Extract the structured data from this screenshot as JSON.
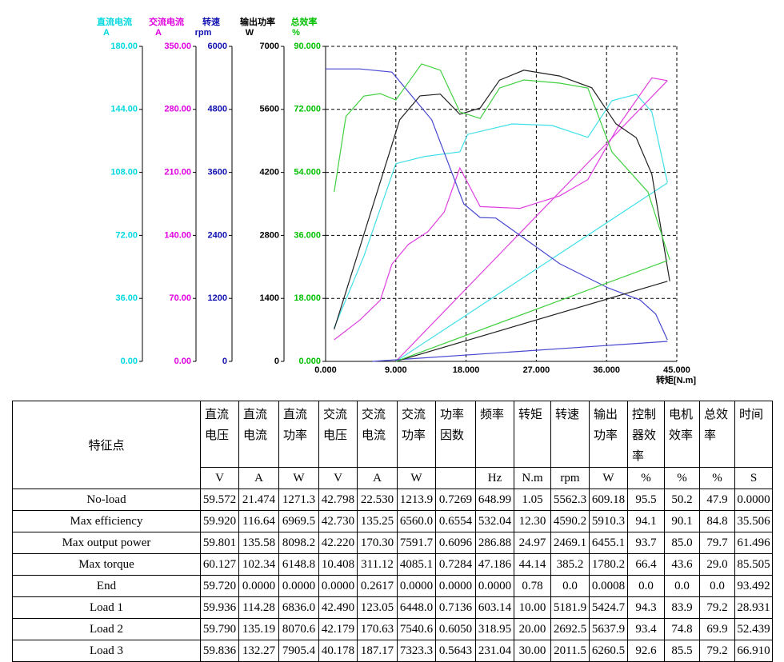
{
  "chart_data": {
    "type": "line",
    "grid": true,
    "axes": [
      {
        "title": "直流电流",
        "unit": "A",
        "color": "#00d8e0",
        "ylim": [
          0,
          180
        ],
        "yticks": [
          {
            "value": 0,
            "label": "0.00"
          },
          {
            "value": 36,
            "label": "36.00"
          },
          {
            "value": 72,
            "label": "72.00"
          },
          {
            "value": 108,
            "label": "108.00"
          },
          {
            "value": 144,
            "label": "144.00"
          },
          {
            "value": 180,
            "label": "180.00"
          }
        ]
      },
      {
        "title": "交流电流",
        "unit": "A",
        "color": "#e000e0",
        "ylim": [
          0,
          350
        ],
        "yticks": [
          {
            "value": 0,
            "label": "0.00"
          },
          {
            "value": 70,
            "label": "70.00"
          },
          {
            "value": 140,
            "label": "140.00"
          },
          {
            "value": 210,
            "label": "210.00"
          },
          {
            "value": 280,
            "label": "280.00"
          },
          {
            "value": 350,
            "label": "350.00"
          }
        ]
      },
      {
        "title": "转速",
        "unit": "rpm",
        "color": "#1010b0",
        "ylim": [
          0,
          6000
        ],
        "yticks": [
          0,
          1200,
          2400,
          3600,
          4800,
          6000
        ]
      },
      {
        "title": "输出功率",
        "unit": "W",
        "color": "#000000",
        "ylim": [
          0,
          7000
        ],
        "yticks": [
          0,
          1400,
          2800,
          4200,
          5600,
          7000
        ]
      },
      {
        "title": "总效率",
        "unit": "%",
        "color": "#00c000",
        "ylim": [
          0,
          90
        ],
        "yticks": [
          {
            "value": 0,
            "label": "0.000"
          },
          {
            "value": 18,
            "label": "18.000"
          },
          {
            "value": 36,
            "label": "36.000"
          },
          {
            "value": 54,
            "label": "54.000"
          },
          {
            "value": 72,
            "label": "72.000"
          },
          {
            "value": 90,
            "label": "90.000"
          }
        ]
      }
    ],
    "xlabel": "转矩[N.m]",
    "xlim": [
      0,
      45
    ],
    "xticks": [
      {
        "value": 0,
        "label": "0.000"
      },
      {
        "value": 9,
        "label": "9.000"
      },
      {
        "value": 18,
        "label": "18.000"
      },
      {
        "value": 27,
        "label": "27.000"
      },
      {
        "value": 36,
        "label": "36.000"
      },
      {
        "value": 45,
        "label": "45.000"
      }
    ],
    "series": [
      {
        "axis": 0,
        "color": "#40e0e8",
        "x": [
          1.1,
          4.9,
          9.0,
          12.6,
          17.2,
          18.2,
          23.9,
          29.0,
          33.6,
          36.7,
          39.8,
          41.8,
          43.8
        ],
        "values": [
          19.2,
          60,
          113,
          117,
          119.7,
          129.7,
          135.7,
          134.8,
          128,
          149,
          152.6,
          142.6,
          102.3
        ]
      },
      {
        "axis": 0,
        "color": "#40e0e8",
        "x": [
          9.0,
          43.8
        ],
        "values": [
          0,
          102
        ]
      },
      {
        "axis": 1,
        "color": "#e040e0",
        "x": [
          1.1,
          4.4,
          7.0,
          8.5,
          10.6,
          13.1,
          15.2,
          17.2,
          19.8,
          24.9,
          30.0,
          33.6,
          37.7,
          41.8,
          43.8
        ],
        "values": [
          24,
          46,
          68,
          108,
          130,
          144,
          166,
          215,
          172,
          170,
          184,
          202,
          264,
          315,
          312
        ]
      },
      {
        "axis": 1,
        "color": "#e040e0",
        "x": [
          9.0,
          43.8
        ],
        "values": [
          0,
          312
        ]
      },
      {
        "axis": 2,
        "color": "#4848d0",
        "x": [
          0,
          4.4,
          8.5,
          13.6,
          17.7,
          19.8,
          21.8,
          30.0,
          36.2,
          40.3,
          42.3,
          43.8
        ],
        "values": [
          5570,
          5570,
          5510,
          4600,
          3000,
          2740,
          2730,
          1860,
          1400,
          1170,
          900,
          410
        ]
      },
      {
        "axis": 2,
        "color": "#4848d0",
        "x": [
          6.0,
          43.8
        ],
        "values": [
          0,
          380
        ]
      },
      {
        "axis": 3,
        "color": "#202020",
        "x": [
          1.1,
          9.5,
          12.1,
          14.7,
          17.2,
          19.8,
          22.3,
          25.4,
          30.0,
          34.1,
          37.2,
          39.8,
          41.8,
          44.1
        ],
        "values": [
          710,
          5370,
          5900,
          5940,
          5490,
          5630,
          6250,
          6470,
          6340,
          6080,
          5280,
          4970,
          4160,
          1780
        ]
      },
      {
        "axis": 3,
        "color": "#202020",
        "x": [
          9.0,
          43.8
        ],
        "values": [
          0,
          1780
        ]
      },
      {
        "axis": 4,
        "color": "#40d040",
        "x": [
          1.1,
          2.6,
          4.9,
          7.0,
          9.0,
          12.3,
          14.7,
          17.2,
          19.8,
          22.3,
          25.4,
          30.0,
          33.6,
          36.7,
          41.3,
          44.1
        ],
        "values": [
          48.4,
          70,
          75.8,
          76.5,
          74.7,
          85,
          83.2,
          71.3,
          69.4,
          78.1,
          80.4,
          79.5,
          78.1,
          59.8,
          48.4,
          29
        ]
      },
      {
        "axis": 4,
        "color": "#40d040",
        "x": [
          9.0,
          43.8
        ],
        "values": [
          0,
          28.8
        ]
      }
    ]
  },
  "table": {
    "corner": "特征点",
    "columns": [
      {
        "label": "直流电压",
        "unit": "V"
      },
      {
        "label": "直流电流",
        "unit": "A"
      },
      {
        "label": "直流功率",
        "unit": "W"
      },
      {
        "label": "交流电压",
        "unit": "V"
      },
      {
        "label": "交流电流",
        "unit": "A"
      },
      {
        "label": "交流功率",
        "unit": "W"
      },
      {
        "label": "功率因数"
      },
      {
        "label": "频率",
        "unit": "Hz"
      },
      {
        "label": "转矩",
        "unit": "N.m"
      },
      {
        "label": "转速",
        "unit": "rpm"
      },
      {
        "label": "输出功率",
        "unit": "W"
      },
      {
        "label": "控制器效率",
        "unit": "%"
      },
      {
        "label": "电机效率",
        "unit": "%"
      },
      {
        "label": "总效率",
        "unit": "%"
      },
      {
        "label": "时间",
        "unit": "S"
      }
    ],
    "rows": [
      [
        "No-load",
        "59.572",
        "21.474",
        "1271.3",
        "42.798",
        "22.530",
        "1213.9",
        "0.7269",
        "648.99",
        "1.05",
        "5562.3",
        "609.18",
        "95.5",
        "50.2",
        "47.9",
        "0.0000"
      ],
      [
        "Max efficiency",
        "59.920",
        "116.64",
        "6969.5",
        "42.730",
        "135.25",
        "6560.0",
        "0.6554",
        "532.04",
        "12.30",
        "4590.2",
        "5910.3",
        "94.1",
        "90.1",
        "84.8",
        "35.506"
      ],
      [
        "Max output power",
        "59.801",
        "135.58",
        "8098.2",
        "42.220",
        "170.30",
        "7591.7",
        "0.6096",
        "286.88",
        "24.97",
        "2469.1",
        "6455.1",
        "93.7",
        "85.0",
        "79.7",
        "61.496"
      ],
      [
        "Max torque",
        "60.127",
        "102.34",
        "6148.8",
        "10.408",
        "311.12",
        "4085.1",
        "0.7284",
        "47.186",
        "44.14",
        "385.2",
        "1780.2",
        "66.4",
        "43.6",
        "29.0",
        "85.505"
      ],
      [
        "End",
        "59.720",
        "0.0000",
        "0.0000",
        "0.0000",
        "0.2617",
        "0.0000",
        "0.0000",
        "0.0000",
        "0.78",
        "0.0",
        "0.0008",
        "0.0",
        "0.0",
        "0.0",
        "93.492"
      ],
      [
        "Load 1",
        "59.936",
        "114.28",
        "6836.0",
        "42.490",
        "123.05",
        "6448.0",
        "0.7136",
        "603.14",
        "10.00",
        "5181.9",
        "5424.7",
        "94.3",
        "83.9",
        "79.2",
        "28.931"
      ],
      [
        "Load 2",
        "59.790",
        "135.19",
        "8070.6",
        "42.179",
        "170.63",
        "7540.6",
        "0.6050",
        "318.95",
        "20.00",
        "2692.5",
        "5637.9",
        "93.4",
        "74.8",
        "69.9",
        "52.439"
      ],
      [
        "Load 3",
        "59.836",
        "132.27",
        "7905.4",
        "40.178",
        "187.17",
        "7323.3",
        "0.5643",
        "231.04",
        "30.00",
        "2011.5",
        "6260.5",
        "92.6",
        "85.5",
        "79.2",
        "66.910"
      ]
    ]
  }
}
